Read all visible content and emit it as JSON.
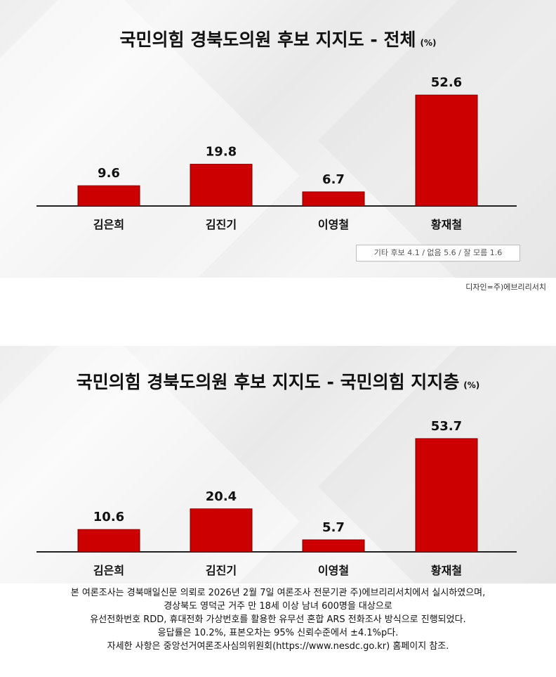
{
  "chart_data": [
    {
      "type": "bar",
      "title": "국민의힘 경북도의원 후보 지지도 - 전체",
      "unit": "(%)",
      "categories": [
        "김은희",
        "김진기",
        "이영철",
        "황재철"
      ],
      "values": [
        9.6,
        19.8,
        6.7,
        52.6
      ],
      "ylim": [
        0,
        60
      ],
      "grid": false,
      "bar_color": "#cc0000",
      "annotation": "기타 후보 4.1 / 없음 5.6 / 잘 모름 1.6"
    },
    {
      "type": "bar",
      "title": "국민의힘 경북도의원 후보 지지도 - 국민의힘 지지층",
      "unit": "(%)",
      "categories": [
        "김은희",
        "김진기",
        "이영철",
        "황재철"
      ],
      "values": [
        10.6,
        20.4,
        5.7,
        53.7
      ],
      "ylim": [
        0,
        60
      ],
      "grid": false,
      "bar_color": "#cc0000"
    }
  ],
  "design_credit": "디자인=주)에브리리서치",
  "survey_note": [
    "본 여론조사는 경북매일신문 의뢰로 2026년 2월 7일 여론조사 전문기관 주)에브리리서치에서 실시하였으며,",
    "경상북도 영덕군 거주 만 18세 이상 남녀 600명을 대상으로",
    "유선전화번호 RDD, 휴대전화 가상번호를 활용한 유무선 혼합 ARS 전화조사 방식으로 진행되었다.",
    "응답률은 10.2%, 표본오차는 95% 신뢰수준에서 ±4.1%p다.",
    "자세한 사항은 중앙선거여론조사심의위원회(https://www.nesdc.go.kr) 홈페이지 참조."
  ]
}
